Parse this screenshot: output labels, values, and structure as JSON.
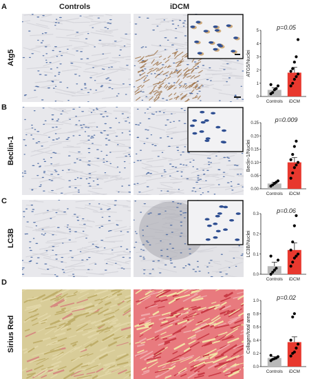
{
  "columns": {
    "controls": "Controls",
    "idcm": "iDCM"
  },
  "panels": [
    {
      "letter": "A",
      "label": "Atg5"
    },
    {
      "letter": "B",
      "label": "Beclin-1"
    },
    {
      "letter": "C",
      "label": "LC3B"
    },
    {
      "letter": "D",
      "label": "Sirius Red"
    }
  ],
  "colors": {
    "tissue_ihc": "#e8e8ec",
    "nuclei": "#3d5f9e",
    "dab_brown": "#9a6a3a",
    "sirius_control": "#cdbd7e",
    "sirius_red": "#d9535a",
    "bar_control": "#b8b8b8",
    "bar_idcm": "#e8382e"
  },
  "chart_data": [
    {
      "type": "bar",
      "categories": [
        "Controls",
        "iDCM"
      ],
      "values": [
        0.5,
        1.8
      ],
      "errors": [
        0.15,
        0.4
      ],
      "points": [
        [
          0.2,
          0.3,
          0.5,
          0.6,
          0.8,
          0.9
        ],
        [
          0.8,
          1.0,
          1.3,
          1.5,
          1.7,
          1.9,
          2.1,
          2.6,
          3.0,
          4.3
        ]
      ],
      "annotation": "p=0.05",
      "ylabel": "ATG5/Nuclei",
      "ylim": [
        0,
        5
      ],
      "yticks": [
        "0",
        "1",
        "2",
        "3",
        "4",
        "5"
      ]
    },
    {
      "type": "bar",
      "categories": [
        "Controls",
        "iDCM"
      ],
      "values": [
        0.02,
        0.1
      ],
      "errors": [
        0.005,
        0.018
      ],
      "points": [
        [
          0.01,
          0.015,
          0.02,
          0.025,
          0.03
        ],
        [
          0.04,
          0.06,
          0.08,
          0.09,
          0.1,
          0.11,
          0.13,
          0.16,
          0.18
        ]
      ],
      "annotation": "p=0.009",
      "ylabel": "Beclin-1/Nuclei",
      "ylim": [
        0,
        0.25
      ],
      "yticks": [
        "0.00",
        "0.05",
        "0.10",
        "0.15",
        "0.20",
        "0.25"
      ]
    },
    {
      "type": "bar",
      "categories": [
        "Controls",
        "iDCM"
      ],
      "values": [
        0.04,
        0.12
      ],
      "errors": [
        0.02,
        0.035
      ],
      "points": [
        [
          0.0,
          0.01,
          0.02,
          0.03,
          0.07,
          0.09
        ],
        [
          0.04,
          0.06,
          0.08,
          0.09,
          0.1,
          0.12,
          0.16,
          0.24,
          0.29
        ]
      ],
      "annotation": "p=0.06",
      "ylabel": "LC3B/Nuclei",
      "ylim": [
        0,
        0.3
      ],
      "yticks": [
        "0.0",
        "0.1",
        "0.2",
        "0.3"
      ]
    },
    {
      "type": "bar",
      "categories": [
        "Controls",
        "iDCM"
      ],
      "values": [
        0.13,
        0.37
      ],
      "errors": [
        0.02,
        0.08
      ],
      "points": [
        [
          0.09,
          0.11,
          0.12,
          0.13,
          0.15,
          0.17
        ],
        [
          0.16,
          0.2,
          0.22,
          0.28,
          0.34,
          0.4,
          0.75,
          0.8
        ]
      ],
      "annotation": "p=0.02",
      "ylabel": "Collagen/total area",
      "ylim": [
        0,
        1.0
      ],
      "yticks": [
        "0.0",
        "0.2",
        "0.4",
        "0.6",
        "0.8",
        "1.0"
      ]
    }
  ]
}
